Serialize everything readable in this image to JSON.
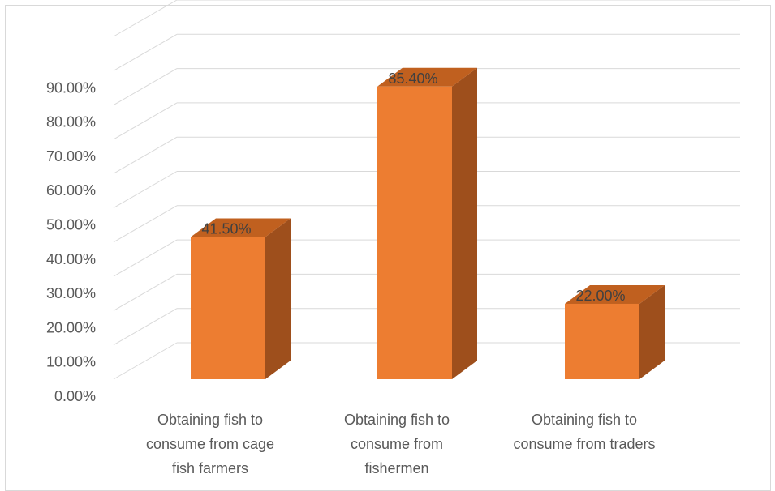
{
  "chart_data": {
    "type": "bar",
    "style": "3d-column",
    "categories": [
      [
        "Obtaining fish to",
        "consume from cage",
        "fish farmers"
      ],
      [
        "Obtaining fish to",
        "consume from",
        "fishermen"
      ],
      [
        "Obtaining fish to",
        "consume from traders"
      ]
    ],
    "values": [
      41.5,
      85.4,
      22.0
    ],
    "data_labels": [
      "41.50%",
      "85.40%",
      "22.00%"
    ],
    "y_ticks": [
      "0.00%",
      "10.00%",
      "20.00%",
      "30.00%",
      "40.00%",
      "50.00%",
      "60.00%",
      "70.00%",
      "80.00%",
      "90.00%"
    ],
    "ylim": [
      0,
      100
    ],
    "grid": true,
    "legend": "none",
    "colors": {
      "front": "#ED7D31",
      "side": "#9E4F1C",
      "top": "#C0601F",
      "grid": "#d9d9d9"
    }
  }
}
